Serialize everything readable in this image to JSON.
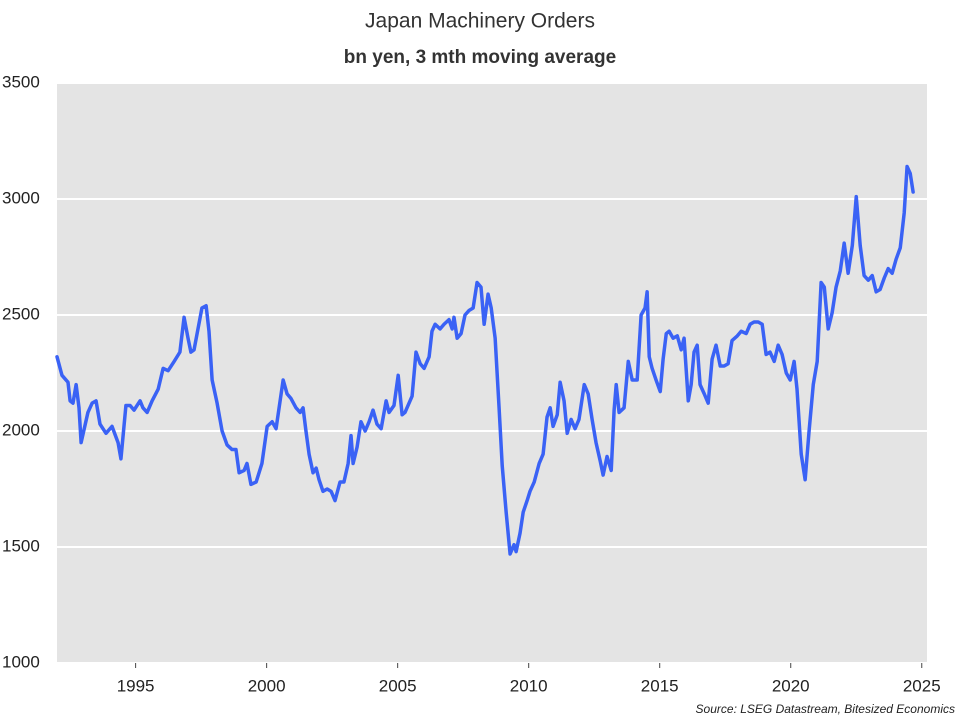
{
  "chart_data": {
    "type": "line",
    "title": "Japan Machinery Orders",
    "subtitle": "bn yen, 3 mth moving average",
    "source": "Source: LSEG Datastream, Bitesized Economics",
    "x": [
      1992.0,
      1992.19,
      1992.42,
      1992.5,
      1992.61,
      1992.73,
      1992.84,
      1992.92,
      1993.18,
      1993.34,
      1993.49,
      1993.64,
      1993.87,
      1994.1,
      1994.33,
      1994.44,
      1994.63,
      1994.79,
      1994.94,
      1995.17,
      1995.28,
      1995.44,
      1995.63,
      1995.86,
      1996.05,
      1996.24,
      1996.47,
      1996.69,
      1996.85,
      1997.0,
      1997.11,
      1997.23,
      1997.38,
      1997.53,
      1997.69,
      1997.8,
      1997.92,
      1998.11,
      1998.3,
      1998.49,
      1998.68,
      1998.83,
      1998.95,
      1999.14,
      1999.25,
      1999.4,
      1999.6,
      1999.82,
      2000.02,
      2000.21,
      2000.36,
      2000.63,
      2000.78,
      2000.93,
      2001.12,
      2001.28,
      2001.39,
      2001.5,
      2001.62,
      2001.77,
      2001.89,
      2002.0,
      2002.15,
      2002.31,
      2002.46,
      2002.61,
      2002.8,
      2002.95,
      2003.11,
      2003.22,
      2003.3,
      2003.45,
      2003.6,
      2003.76,
      2003.91,
      2004.06,
      2004.21,
      2004.37,
      2004.56,
      2004.67,
      2004.86,
      2005.02,
      2005.17,
      2005.28,
      2005.55,
      2005.7,
      2005.86,
      2006.01,
      2006.2,
      2006.31,
      2006.43,
      2006.62,
      2006.77,
      2006.96,
      2007.08,
      2007.15,
      2007.27,
      2007.42,
      2007.57,
      2007.73,
      2007.88,
      2008.03,
      2008.18,
      2008.3,
      2008.45,
      2008.57,
      2008.72,
      2008.87,
      2008.99,
      2009.14,
      2009.29,
      2009.44,
      2009.52,
      2009.67,
      2009.79,
      2009.94,
      2010.05,
      2010.21,
      2010.4,
      2010.55,
      2010.7,
      2010.82,
      2010.93,
      2011.09,
      2011.2,
      2011.35,
      2011.47,
      2011.62,
      2011.77,
      2011.92,
      2012.12,
      2012.27,
      2012.42,
      2012.57,
      2012.73,
      2012.84,
      2012.99,
      2013.15,
      2013.26,
      2013.34,
      2013.45,
      2013.64,
      2013.8,
      2013.95,
      2014.14,
      2014.29,
      2014.44,
      2014.52,
      2014.6,
      2014.71,
      2014.86,
      2015.02,
      2015.13,
      2015.25,
      2015.36,
      2015.51,
      2015.67,
      2015.82,
      2015.93,
      2016.09,
      2016.2,
      2016.31,
      2016.43,
      2016.54,
      2016.7,
      2016.85,
      2017.0,
      2017.15,
      2017.31,
      2017.46,
      2017.61,
      2017.76,
      2017.96,
      2018.11,
      2018.3,
      2018.45,
      2018.6,
      2018.76,
      2018.91,
      2019.06,
      2019.21,
      2019.37,
      2019.52,
      2019.67,
      2019.83,
      2019.98,
      2020.13,
      2020.24,
      2020.4,
      2020.55,
      2020.7,
      2020.86,
      2021.01,
      2021.16,
      2021.28,
      2021.43,
      2021.58,
      2021.73,
      2021.89,
      2022.04,
      2022.19,
      2022.35,
      2022.5,
      2022.65,
      2022.8,
      2022.96,
      2023.11,
      2023.26,
      2023.41,
      2023.57,
      2023.72,
      2023.87,
      2024.02,
      2024.18,
      2024.33,
      2024.44,
      2024.56,
      2024.67
    ],
    "values": [
      2320,
      2240,
      2210,
      2130,
      2120,
      2200,
      2100,
      1950,
      2080,
      2120,
      2130,
      2030,
      1990,
      2020,
      1950,
      1880,
      2110,
      2110,
      2090,
      2130,
      2100,
      2080,
      2130,
      2180,
      2270,
      2260,
      2300,
      2340,
      2490,
      2400,
      2340,
      2350,
      2440,
      2530,
      2540,
      2430,
      2220,
      2120,
      2000,
      1940,
      1920,
      1920,
      1820,
      1830,
      1860,
      1770,
      1780,
      1860,
      2020,
      2040,
      2010,
      2220,
      2160,
      2140,
      2100,
      2080,
      2100,
      2000,
      1900,
      1820,
      1840,
      1790,
      1740,
      1750,
      1740,
      1700,
      1780,
      1780,
      1860,
      1980,
      1860,
      1930,
      2040,
      2000,
      2040,
      2090,
      2030,
      2010,
      2130,
      2080,
      2110,
      2240,
      2070,
      2080,
      2150,
      2340,
      2290,
      2270,
      2320,
      2430,
      2460,
      2440,
      2460,
      2480,
      2440,
      2490,
      2400,
      2420,
      2500,
      2520,
      2530,
      2640,
      2620,
      2460,
      2590,
      2530,
      2400,
      2100,
      1850,
      1650,
      1470,
      1510,
      1480,
      1560,
      1650,
      1700,
      1740,
      1780,
      1860,
      1900,
      2060,
      2100,
      2020,
      2070,
      2210,
      2130,
      1990,
      2050,
      2010,
      2050,
      2200,
      2160,
      2050,
      1950,
      1870,
      1810,
      1890,
      1830,
      2090,
      2200,
      2080,
      2100,
      2300,
      2220,
      2220,
      2500,
      2530,
      2600,
      2320,
      2270,
      2220,
      2170,
      2310,
      2420,
      2430,
      2400,
      2410,
      2350,
      2400,
      2130,
      2200,
      2340,
      2370,
      2200,
      2160,
      2120,
      2310,
      2370,
      2280,
      2280,
      2290,
      2390,
      2410,
      2430,
      2420,
      2460,
      2470,
      2470,
      2460,
      2330,
      2340,
      2300,
      2370,
      2330,
      2250,
      2220,
      2300,
      2180,
      1900,
      1790,
      2000,
      2200,
      2300,
      2640,
      2620,
      2440,
      2510,
      2620,
      2690,
      2810,
      2680,
      2800,
      3010,
      2800,
      2670,
      2650,
      2670,
      2600,
      2610,
      2660,
      2700,
      2680,
      2740,
      2790,
      2940,
      3140,
      3110,
      3030
    ],
    "color": "#3a62f5",
    "xlim": [
      1992,
      2025.2
    ],
    "xticks": [
      1995,
      2000,
      2005,
      2010,
      2015,
      2020,
      2025
    ],
    "ylim": [
      1000,
      3500
    ],
    "yticks": [
      1000,
      1500,
      2000,
      2500,
      3000,
      3500
    ],
    "grid": true
  }
}
